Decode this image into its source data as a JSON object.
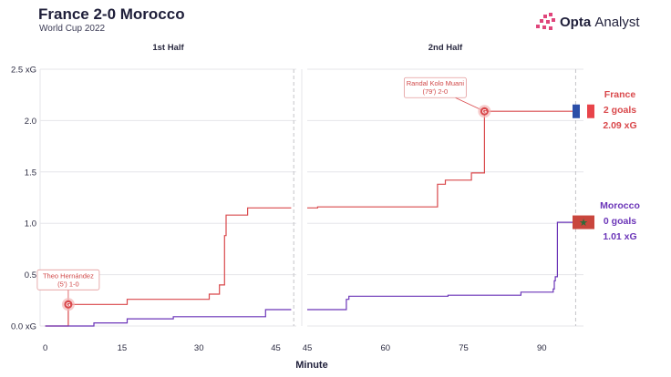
{
  "header": {
    "title": "France 2-0 Morocco",
    "subtitle": "World Cup 2022",
    "logo_bold": "Opta",
    "logo_light": "Analyst"
  },
  "colors": {
    "france": "#d9484b",
    "morocco": "#6b35b8",
    "grid": "#e6e6ea",
    "guide": "#c4c4c8"
  },
  "chart_data": {
    "type": "line",
    "step": true,
    "xlabel": "Minute",
    "ylim": [
      0,
      2.5
    ],
    "y_ticks": [
      0.0,
      0.5,
      1.0,
      1.5,
      2.0,
      2.5
    ],
    "y_tick_labels": [
      "0.0 xG",
      "0.5",
      "1.0",
      "1.5",
      "2.0",
      "2.5 xG"
    ],
    "grid": true,
    "panels": [
      {
        "title": "1st Half",
        "xlim": [
          -1,
          49
        ],
        "x_ticks": [
          0,
          15,
          30,
          45
        ],
        "end_line": 48.5
      },
      {
        "title": "2nd Half",
        "xlim": [
          45,
          98
        ],
        "x_ticks": [
          45,
          60,
          75,
          90
        ],
        "end_line": 96.5
      }
    ],
    "series": [
      {
        "name": "France",
        "color_key": "france",
        "half1": [
          [
            0,
            0
          ],
          [
            4.5,
            0
          ],
          [
            4.5,
            0.21
          ],
          [
            16,
            0.21
          ],
          [
            16,
            0.26
          ],
          [
            32,
            0.26
          ],
          [
            32,
            0.31
          ],
          [
            34,
            0.31
          ],
          [
            34,
            0.4
          ],
          [
            35,
            0.4
          ],
          [
            35,
            0.88
          ],
          [
            35.3,
            0.88
          ],
          [
            35.3,
            1.08
          ],
          [
            39.5,
            1.08
          ],
          [
            39.5,
            1.15
          ],
          [
            48,
            1.15
          ]
        ],
        "half2": [
          [
            45,
            1.15
          ],
          [
            47,
            1.15
          ],
          [
            47,
            1.16
          ],
          [
            70,
            1.16
          ],
          [
            70,
            1.38
          ],
          [
            71.5,
            1.38
          ],
          [
            71.5,
            1.42
          ],
          [
            76.5,
            1.42
          ],
          [
            76.5,
            1.49
          ],
          [
            79,
            1.49
          ],
          [
            79,
            2.09
          ],
          [
            96.5,
            2.09
          ]
        ]
      },
      {
        "name": "Morocco",
        "color_key": "morocco",
        "half1": [
          [
            0,
            0
          ],
          [
            9.5,
            0
          ],
          [
            9.5,
            0.03
          ],
          [
            16,
            0.03
          ],
          [
            16,
            0.07
          ],
          [
            25,
            0.07
          ],
          [
            25,
            0.09
          ],
          [
            43,
            0.09
          ],
          [
            43,
            0.16
          ],
          [
            48,
            0.16
          ]
        ],
        "half2": [
          [
            45,
            0.16
          ],
          [
            52.5,
            0.16
          ],
          [
            52.5,
            0.26
          ],
          [
            53,
            0.26
          ],
          [
            53,
            0.29
          ],
          [
            72,
            0.29
          ],
          [
            72,
            0.3
          ],
          [
            86,
            0.3
          ],
          [
            86,
            0.33
          ],
          [
            92.2,
            0.33
          ],
          [
            92.2,
            0.36
          ],
          [
            92.4,
            0.36
          ],
          [
            92.4,
            0.44
          ],
          [
            92.6,
            0.44
          ],
          [
            92.6,
            0.48
          ],
          [
            93,
            0.48
          ],
          [
            93,
            1.01
          ],
          [
            96.5,
            1.01
          ]
        ]
      }
    ],
    "goals": [
      {
        "team": "France",
        "half": 0,
        "minute": 4.5,
        "xg": 0.21,
        "marker": "G",
        "label_line1": "Theo Hernández",
        "label_line2": "(5') 1-0"
      },
      {
        "team": "France",
        "half": 1,
        "minute": 79,
        "xg": 2.09,
        "marker": "G",
        "label_line1": "Randal Kolo Muani",
        "label_line2": "(79') 2-0"
      }
    ],
    "end_labels": [
      {
        "team": "France",
        "color_key": "france",
        "line1": "France",
        "line2": "2 goals",
        "line3": "2.09 xG",
        "xg": 2.09
      },
      {
        "team": "Morocco",
        "color_key": "morocco",
        "line1": "Morocco",
        "line2": "0 goals",
        "line3": "1.01 xG",
        "xg": 1.01
      }
    ]
  }
}
